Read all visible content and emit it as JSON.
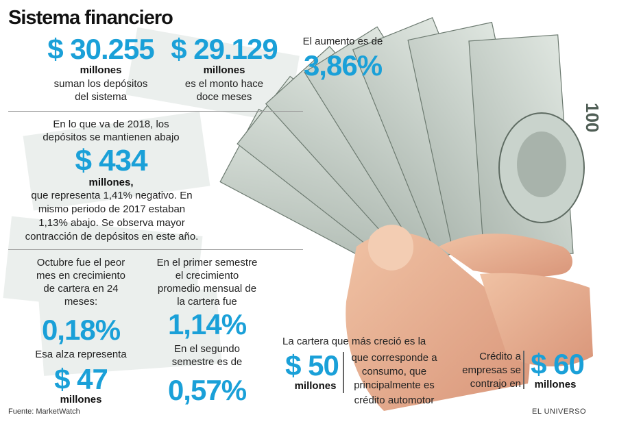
{
  "title": "Sistema financiero",
  "deposits": {
    "current_amount": "$ 30.255",
    "current_unit": "millones",
    "current_desc_1": "suman los depósitos",
    "current_desc_2": "del sistema",
    "previous_amount": "$ 29.129",
    "previous_unit": "millones",
    "previous_desc_1": "es el monto hace",
    "previous_desc_2": "doce meses",
    "increase_label": "El aumento es de",
    "increase_value": "3,86%"
  },
  "ytd": {
    "intro_1": "En lo que va de 2018, los",
    "intro_2": "depósitos se mantienen abajo",
    "amount": "$ 434",
    "unit": "millones,",
    "desc_1": "que representa 1,41% negativo. En",
    "desc_2": "mismo periodo de 2017 estaban",
    "desc_3": "1,13% abajo. Se observa mayor",
    "desc_4": "contracción de depósitos en este año."
  },
  "october": {
    "text_1": "Octubre fue el peor",
    "text_2": "mes en crecimiento",
    "text_3": "de cartera en 24",
    "text_4": "meses:",
    "value": "0,18%",
    "alza_label": "Esa alza  representa",
    "alza_amount": "$ 47",
    "alza_unit": "millones"
  },
  "semester": {
    "text_1": "En el primer semestre",
    "text_2": "el crecimiento",
    "text_3": "promedio mensual de",
    "text_4": "la cartera fue",
    "first_value": "1,14%",
    "second_text_1": "En el segundo",
    "second_text_2": "semestre es de",
    "second_value": "0,57%"
  },
  "cartera": {
    "heading": "La cartera que más creció es la",
    "amount": "$ 50",
    "unit": "millones",
    "desc_1": "que corresponde a",
    "desc_2": "consumo, que",
    "desc_3": "principalmente es",
    "desc_4": "crédito automotor"
  },
  "credito": {
    "text_1": "Crédito a",
    "text_2": "empresas se",
    "text_3": "contrajo en",
    "amount": "$ 60",
    "unit": "millones"
  },
  "footer": {
    "source": "Fuente: MarketWatch",
    "brand": "EL UNIVERSO"
  },
  "colors": {
    "accent": "#1aa0d8",
    "text": "#222222"
  }
}
